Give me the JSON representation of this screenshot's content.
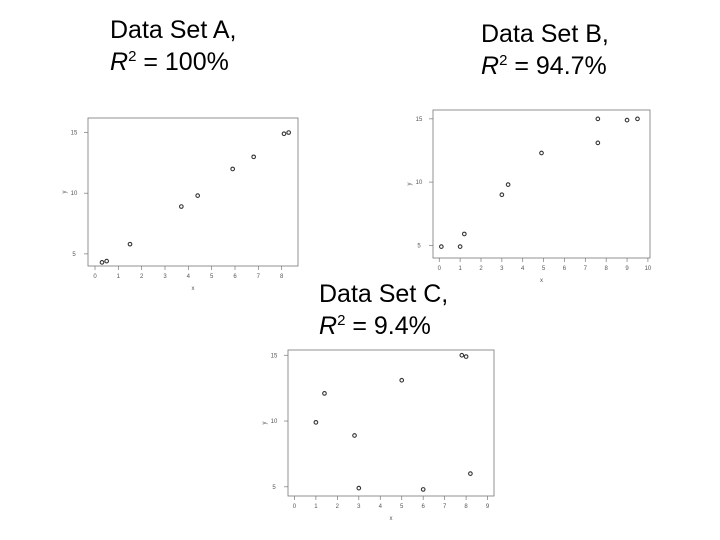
{
  "captions": [
    {
      "line1": "Data Set A,",
      "r": "R",
      "sup": "2",
      "rest": " = 100%"
    },
    {
      "line1": "Data Set B,",
      "r": "R",
      "sup": "2",
      "rest": " = 94.7%"
    },
    {
      "line1": "Data Set C,",
      "r": "R",
      "sup": "2",
      "rest": " = 9.4%"
    }
  ],
  "chart_data": [
    {
      "type": "scatter",
      "title": "Data Set A, R2 = 100%",
      "xlabel": "x",
      "ylabel": "y",
      "xlim": [
        -0.3,
        8.7
      ],
      "ylim": [
        4,
        16.2
      ],
      "xticks": [
        0,
        1,
        2,
        3,
        4,
        5,
        6,
        7,
        8
      ],
      "yticks": [
        5,
        10,
        15
      ],
      "x": [
        0.3,
        0.5,
        1.5,
        3.7,
        4.4,
        5.9,
        6.8,
        8.1,
        8.3
      ],
      "y": [
        4.3,
        4.4,
        5.8,
        8.9,
        9.8,
        12.0,
        13.0,
        14.9,
        15.0
      ]
    },
    {
      "type": "scatter",
      "title": "Data Set B, R2 = 94.7%",
      "xlabel": "x",
      "ylabel": "y",
      "xlim": [
        -0.3,
        10.1
      ],
      "ylim": [
        4,
        15.7
      ],
      "xticks": [
        0,
        1,
        2,
        3,
        4,
        5,
        6,
        7,
        8,
        9,
        10
      ],
      "yticks": [
        5,
        10,
        15
      ],
      "x": [
        0.1,
        1.0,
        1.2,
        3.0,
        3.3,
        4.9,
        7.6,
        7.6,
        9.0,
        9.5
      ],
      "y": [
        4.9,
        4.9,
        5.9,
        9.0,
        9.8,
        12.3,
        13.1,
        15.0,
        14.9,
        15.0
      ]
    },
    {
      "type": "scatter",
      "title": "Data Set C, R2 = 9.4%",
      "xlabel": "x",
      "ylabel": "y",
      "xlim": [
        -0.3,
        9.3
      ],
      "ylim": [
        4.3,
        15.4
      ],
      "xticks": [
        0,
        1,
        2,
        3,
        4,
        5,
        6,
        7,
        8,
        9
      ],
      "yticks": [
        5,
        10,
        15
      ],
      "x": [
        1.0,
        1.4,
        2.8,
        3.0,
        5.0,
        6.0,
        7.8,
        8.0,
        8.2
      ],
      "y": [
        9.9,
        12.1,
        8.9,
        4.9,
        13.1,
        4.8,
        15.0,
        14.9,
        6.0
      ]
    }
  ]
}
